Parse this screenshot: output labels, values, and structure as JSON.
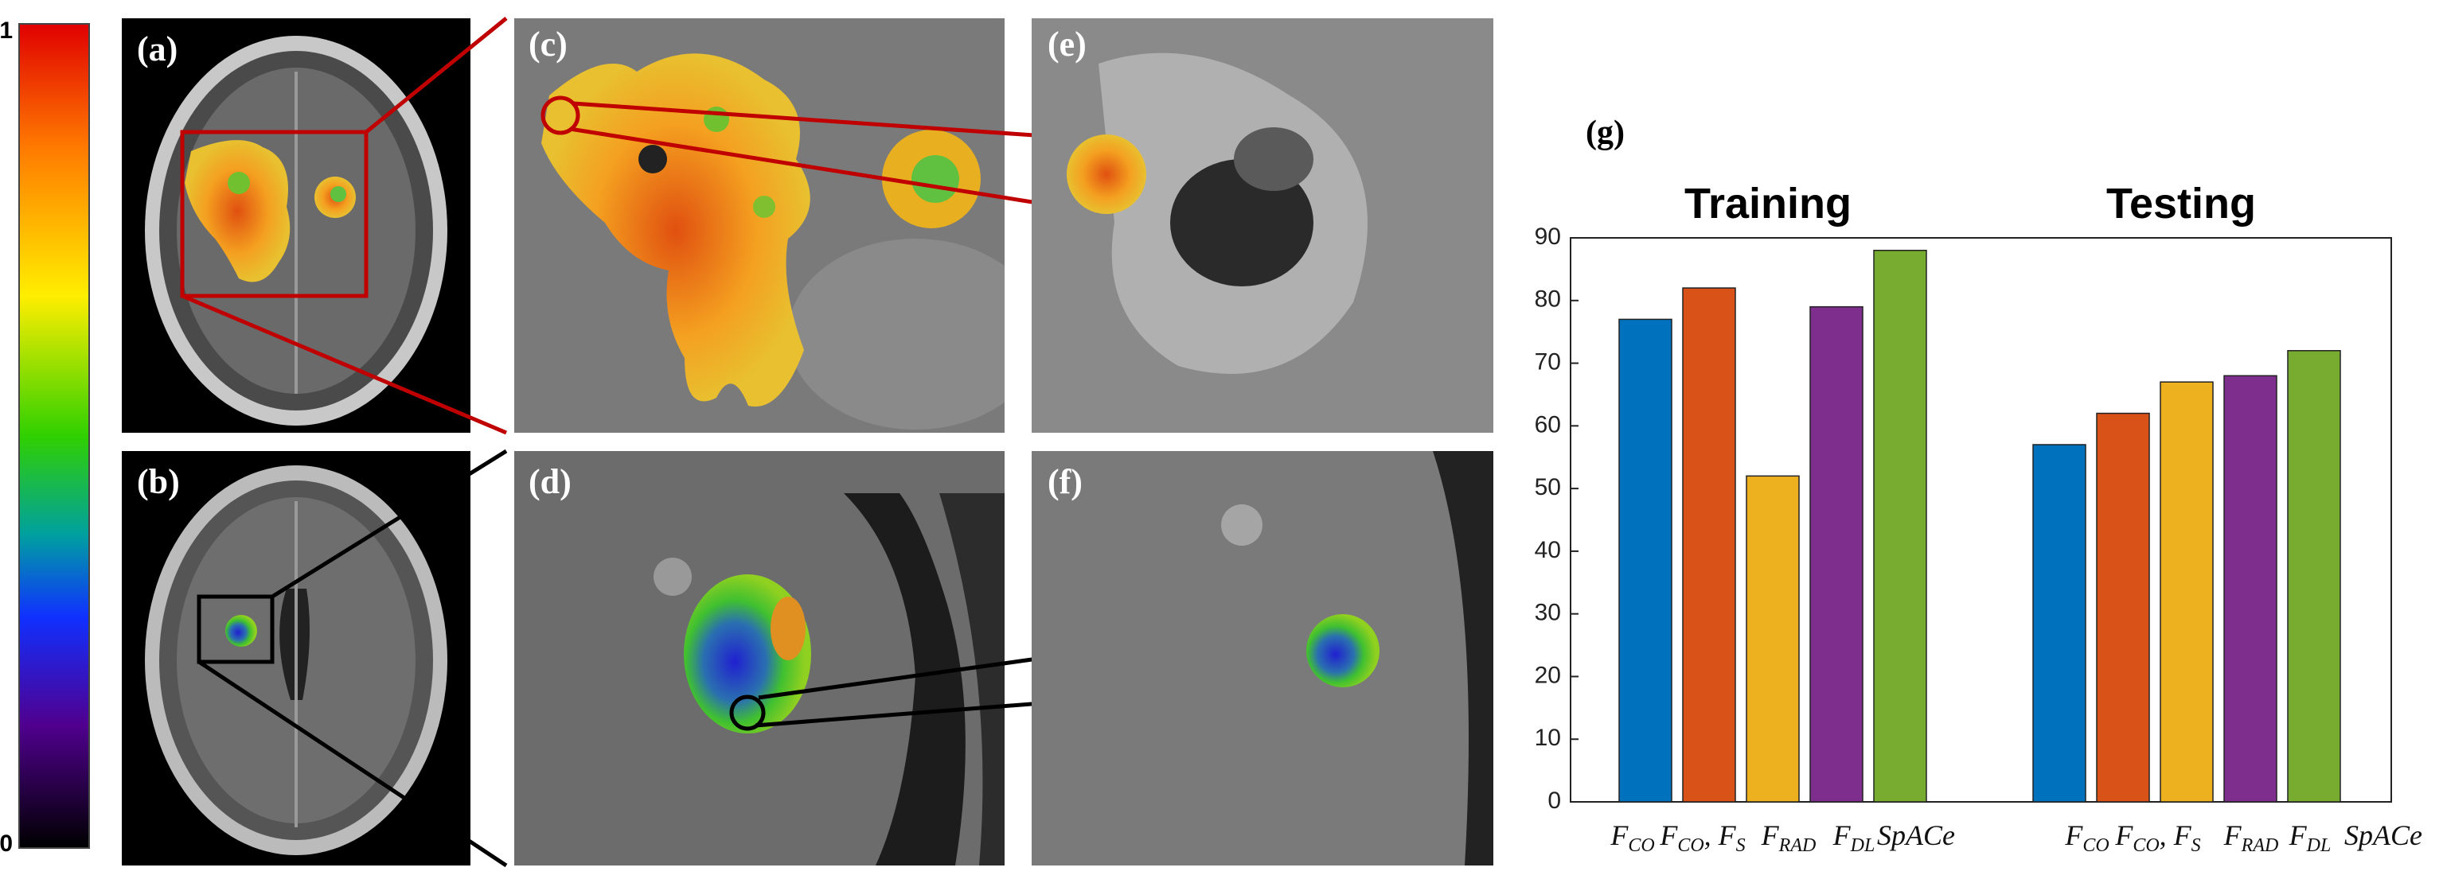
{
  "figure": {
    "colorbar": {
      "max_label": "1",
      "min_label": "0"
    },
    "panels": [
      "(a)",
      "(b)",
      "(c)",
      "(d)",
      "(e)",
      "(f)"
    ]
  },
  "chart_data": {
    "type": "bar",
    "label": "(g)",
    "groups": [
      {
        "name": "Training",
        "values": [
          77,
          82,
          52,
          79,
          88
        ]
      },
      {
        "name": "Testing",
        "values": [
          57,
          62,
          67,
          68,
          72
        ]
      }
    ],
    "colors": [
      "#0072BD",
      "#D95319",
      "#EDB120",
      "#7E2F8E",
      "#77AC30"
    ],
    "x_labels": [
      [
        {
          "text": "F"
        },
        {
          "text": "CO",
          "sub": true
        }
      ],
      [
        {
          "text": "F"
        },
        {
          "text": "CO",
          "sub": true
        },
        {
          "text": ", F"
        },
        {
          "text": "S",
          "sub": true
        }
      ],
      [
        {
          "text": "F"
        },
        {
          "text": "RAD",
          "sub": true
        }
      ],
      [
        {
          "text": "F"
        },
        {
          "text": "DL",
          "sub": true
        }
      ],
      [
        {
          "text": "SpACe"
        }
      ]
    ],
    "ylim": [
      0,
      90
    ],
    "yticks": [
      0,
      10,
      20,
      30,
      40,
      50,
      60,
      70,
      80,
      90
    ]
  }
}
